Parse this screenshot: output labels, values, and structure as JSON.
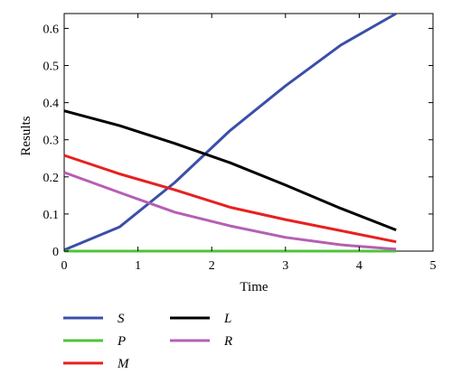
{
  "chart_data": {
    "type": "line",
    "xlabel": "Time",
    "ylabel": "Results",
    "xlim": [
      0,
      5
    ],
    "ylim": [
      0,
      0.64
    ],
    "xticks": [
      "0",
      "1",
      "2",
      "3",
      "4",
      "5"
    ],
    "yticks": [
      "0",
      "0.1",
      "0.2",
      "0.3",
      "0.4",
      "0.5",
      "0.6"
    ],
    "grid": false,
    "legend_position": "bottom",
    "series": [
      {
        "name": "S",
        "color": "#3b4fa8",
        "x": [
          0,
          0.75,
          1.5,
          2.25,
          3.0,
          3.75,
          4.5
        ],
        "y": [
          0.003,
          0.065,
          0.185,
          0.325,
          0.445,
          0.555,
          0.64
        ]
      },
      {
        "name": "P",
        "color": "#4fc43a",
        "x": [
          0,
          4.5
        ],
        "y": [
          0.0,
          0.0
        ]
      },
      {
        "name": "M",
        "color": "#e8201f",
        "x": [
          0,
          0.75,
          1.5,
          2.25,
          3.0,
          3.75,
          4.5
        ],
        "y": [
          0.258,
          0.208,
          0.165,
          0.118,
          0.085,
          0.055,
          0.025
        ]
      },
      {
        "name": "L",
        "color": "#000000",
        "x": [
          0,
          0.75,
          1.5,
          2.25,
          3.0,
          3.75,
          4.5
        ],
        "y": [
          0.378,
          0.338,
          0.29,
          0.238,
          0.178,
          0.115,
          0.057
        ]
      },
      {
        "name": "R",
        "color": "#b55fb4",
        "x": [
          0,
          0.75,
          1.5,
          2.25,
          3.0,
          3.75,
          4.5
        ],
        "y": [
          0.212,
          0.158,
          0.105,
          0.068,
          0.037,
          0.017,
          0.005
        ]
      }
    ]
  }
}
